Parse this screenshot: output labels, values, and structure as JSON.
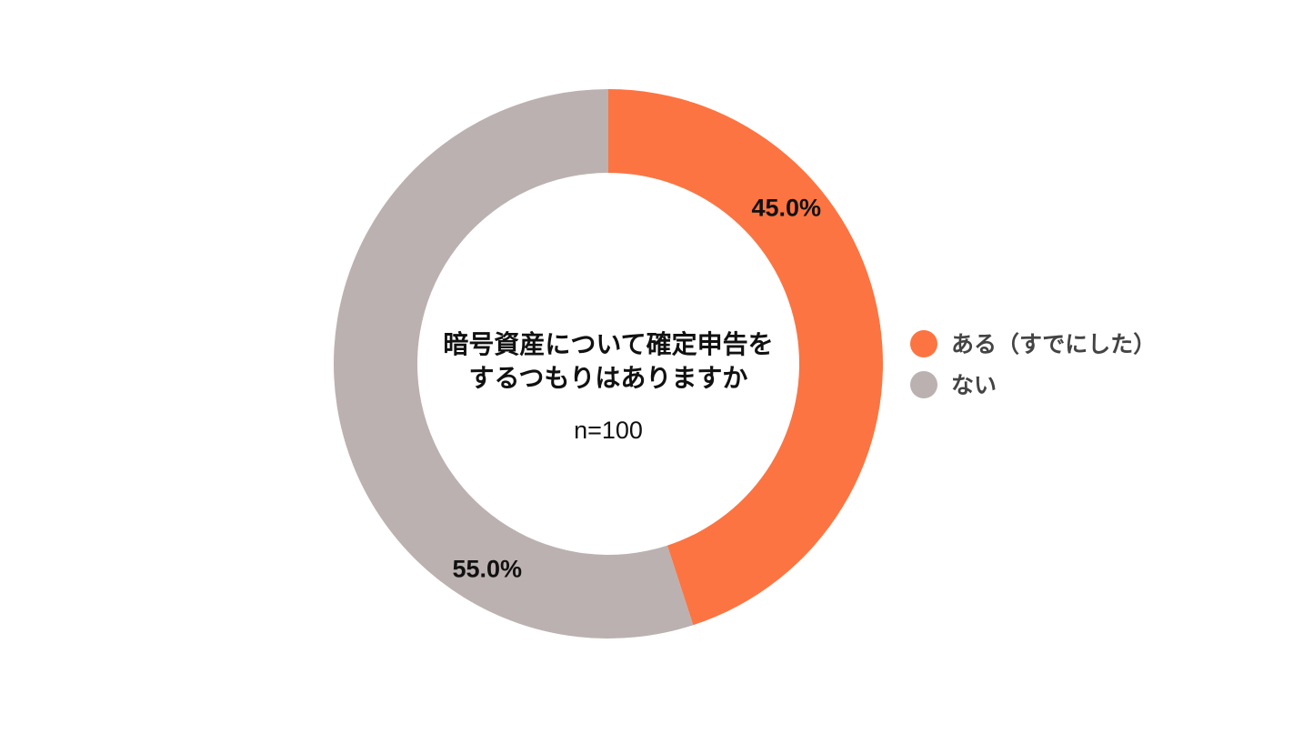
{
  "chart_data": {
    "type": "pie",
    "subtype": "donut",
    "title_lines": [
      "暗号資産について確定申告を",
      "するつもりはありますか"
    ],
    "sample_size": "n=100",
    "legend_position": "right",
    "slices": [
      {
        "name": "ある（すでにした）",
        "value": 45.0,
        "label": "45.0%",
        "color": "#FC7442"
      },
      {
        "name": "ない",
        "value": 55.0,
        "label": "55.0%",
        "color": "#BBB1B0"
      }
    ]
  }
}
